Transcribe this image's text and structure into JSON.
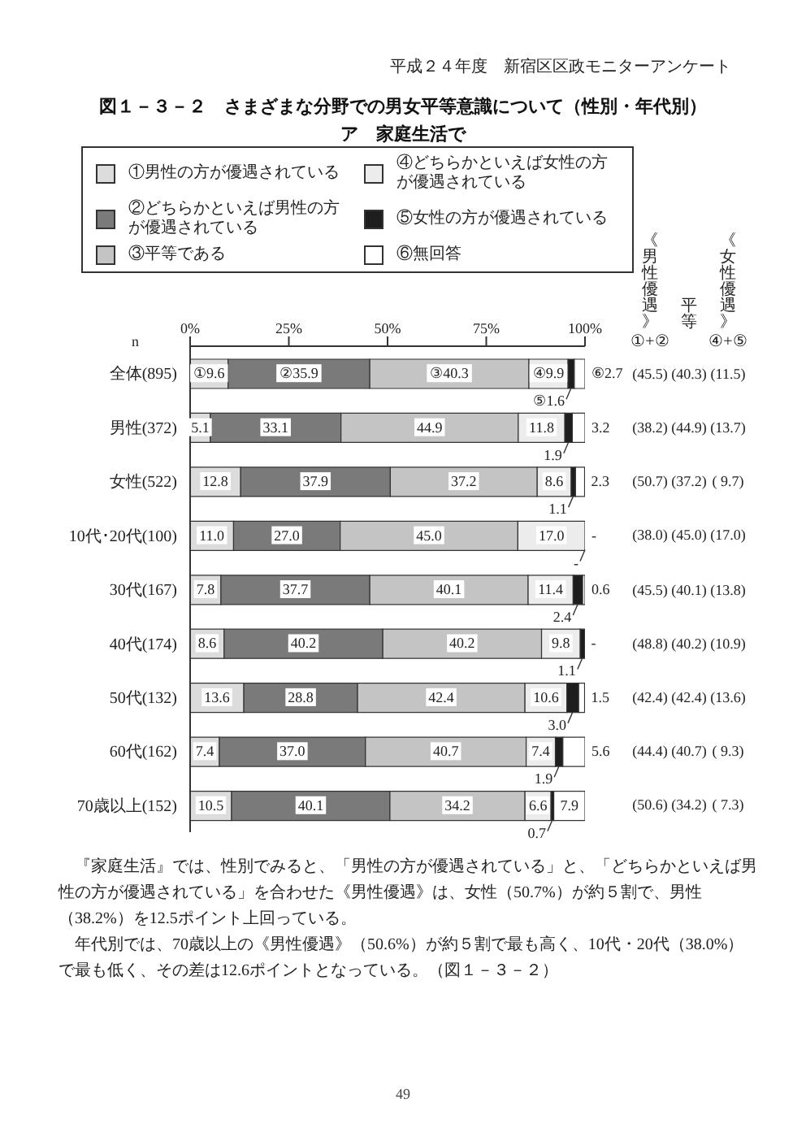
{
  "chart_data": {
    "type": "bar",
    "orientation": "horizontal",
    "stacked": true,
    "title": "図１－３－２　さまざまな分野での男女平等意識について（性別・年代別）",
    "subtitle": "ア　家庭生活で",
    "ylabel": "n",
    "categories": [
      "全体(895)",
      "男性(372)",
      "女性(522)",
      "10代･20代(100)",
      "30代(167)",
      "40代(174)",
      "50代(132)",
      "60代(162)",
      "70歳以上(152)"
    ],
    "series": [
      {
        "name": "①男性の方が優遇されている",
        "color": "#dcdcdc",
        "values": [
          9.6,
          5.1,
          12.8,
          11.0,
          7.8,
          8.6,
          13.6,
          7.4,
          10.5
        ],
        "value_labels": [
          "①9.6",
          "5.1",
          "12.8",
          "11.0",
          "7.8",
          "8.6",
          "13.6",
          "7.4",
          "10.5"
        ]
      },
      {
        "name": "②どちらかといえば男性の方が優遇されている",
        "color": "#7a7a7a",
        "values": [
          35.9,
          33.1,
          37.9,
          27.0,
          37.7,
          40.2,
          28.8,
          37.0,
          40.1
        ],
        "value_labels": [
          "②35.9",
          "33.1",
          "37.9",
          "27.0",
          "37.7",
          "40.2",
          "28.8",
          "37.0",
          "40.1"
        ]
      },
      {
        "name": "③平等である",
        "color": "#c4c4c4",
        "values": [
          40.3,
          44.9,
          37.2,
          45.0,
          40.1,
          40.2,
          42.4,
          40.7,
          34.2
        ],
        "value_labels": [
          "③40.3",
          "44.9",
          "37.2",
          "45.0",
          "40.1",
          "40.2",
          "42.4",
          "40.7",
          "34.2"
        ]
      },
      {
        "name": "④どちらかといえば女性の方が優遇されている",
        "color": "#ececec",
        "values": [
          9.9,
          11.8,
          8.6,
          17.0,
          11.4,
          9.8,
          10.6,
          7.4,
          6.6
        ],
        "value_labels": [
          "④9.9",
          "11.8",
          "8.6",
          "17.0",
          "11.4",
          "9.8",
          "10.6",
          "7.4",
          "6.6"
        ]
      },
      {
        "name": "⑤女性の方が優遇されている",
        "color": "#1e1e1e",
        "values": [
          1.6,
          1.9,
          1.1,
          0,
          2.4,
          1.1,
          3.0,
          1.9,
          0.7
        ],
        "value_labels": [
          "⑤1.6",
          "1.9",
          "1.1",
          "-",
          "2.4",
          "1.1",
          "3.0",
          "1.9",
          "0.7"
        ]
      },
      {
        "name": "⑥無回答",
        "color": "#ffffff",
        "values": [
          2.7,
          3.2,
          2.3,
          0,
          0.6,
          0,
          1.5,
          5.6,
          7.9
        ],
        "value_labels": [
          "⑥2.7",
          "3.2",
          "2.3",
          "-",
          "0.6",
          "-",
          "1.5",
          "5.6",
          "7.9"
        ]
      }
    ],
    "xlim": [
      0,
      100
    ],
    "xticks": [
      {
        "value": 0,
        "label": "0%"
      },
      {
        "value": 25,
        "label": "25%"
      },
      {
        "value": 50,
        "label": "50%"
      },
      {
        "value": 75,
        "label": "75%"
      },
      {
        "value": 100,
        "label": "100%"
      }
    ],
    "legend": "top",
    "annotations": [
      "平成２４年度　新宿区区政モニターアンケート",
      "《男性優遇》",
      "①+②",
      "平等",
      "《女性優遇》",
      "④+⑤",
      "(45.5)",
      "(40.3)",
      "(11.5)",
      "(38.2)",
      "(44.9)",
      "(13.7)",
      "(50.7)",
      "(37.2)",
      "( 9.7)",
      "(38.0)",
      "(45.0)",
      "(17.0)",
      "(45.5)",
      "(40.1)",
      "(13.8)",
      "(48.8)",
      "(40.2)",
      "(10.9)",
      "(42.4)",
      "(42.4)",
      "(13.6)",
      "(44.4)",
      "(40.7)",
      "( 9.3)",
      "(50.6)",
      "(34.2)",
      "( 7.3)",
      "『家庭生活』では、性別でみると、「男性の方が優遇されている」と、「どちらかといえば男性の方が優遇されている」を合わせた《男性優遇》は、女性（50.7%）が約５割で、男性（38.2%）を12.5ポイント上回っている。",
      "年代別では、70歳以上の《男性優遇》（50.6%）が約５割で最も高く、10代・20代（38.0%）で最も低く、その差は12.6ポイントとなっている。（図１－３－２）",
      "49"
    ]
  }
}
